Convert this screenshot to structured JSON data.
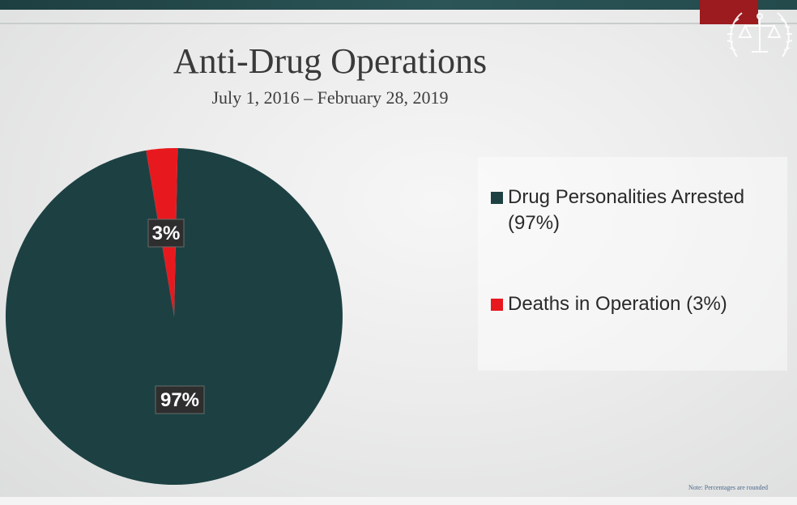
{
  "header": {
    "accent_color": "#9b1b1e",
    "bar_color": "#1e3f41",
    "emblem_icon": "scales-of-justice-laurel-icon"
  },
  "chart_data": {
    "type": "pie",
    "title": "Anti-Drug Operations",
    "subtitle": "July 1, 2016 – February 28, 2019",
    "slices": [
      {
        "name": "Drug Personalities Arrested",
        "legend": "Drug Personalities Arrested (97%)",
        "value": 97,
        "label": "97%",
        "color": "#1d4143"
      },
      {
        "name": "Deaths in Operation",
        "legend": "Deaths in Operation (3%)",
        "value": 3,
        "label": "3%",
        "color": "#e8191e"
      }
    ],
    "legend_position": "right"
  },
  "footer": {
    "note": "Note: Percentages are rounded"
  }
}
